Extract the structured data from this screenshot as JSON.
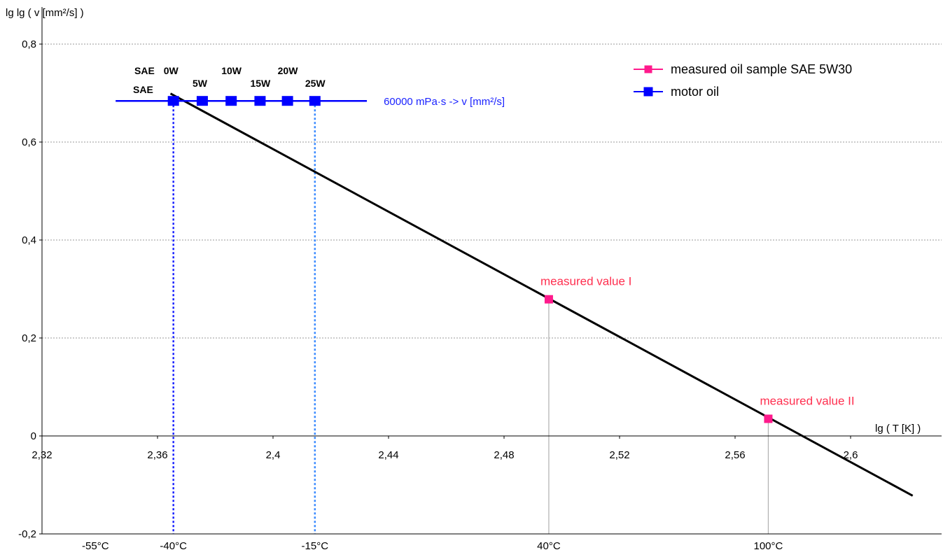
{
  "chart_data": {
    "type": "line",
    "ylabel": "lg lg ( v [mm²/s] )",
    "xlabel": "lg ( T [K] )",
    "xlim": [
      2.32,
      2.63
    ],
    "ylim": [
      -0.2,
      0.8
    ],
    "x_ticks": [
      {
        "value": 2.32,
        "label": "2,32"
      },
      {
        "value": 2.36,
        "label": "2,36"
      },
      {
        "value": 2.4,
        "label": "2,4"
      },
      {
        "value": 2.44,
        "label": "2,44"
      },
      {
        "value": 2.48,
        "label": "2,48"
      },
      {
        "value": 2.52,
        "label": "2,52"
      },
      {
        "value": 2.56,
        "label": "2,56"
      },
      {
        "value": 2.6,
        "label": "2,6"
      }
    ],
    "y_ticks": [
      {
        "value": 0.8,
        "label": "0,8"
      },
      {
        "value": 0.6,
        "label": "0,6"
      },
      {
        "value": 0.4,
        "label": "0,4"
      },
      {
        "value": 0.2,
        "label": "0,2"
      },
      {
        "value": 0.0,
        "label": "0"
      },
      {
        "value": -0.2,
        "label": "-0,2"
      }
    ],
    "temperature_ticks": [
      {
        "x": 2.3385,
        "label": "-55°C"
      },
      {
        "x": 2.3655,
        "label": "-40°C"
      },
      {
        "x": 2.4145,
        "label": "-15°C"
      },
      {
        "x": 2.4955,
        "label": "40°C"
      },
      {
        "x": 2.5715,
        "label": "100°C"
      }
    ],
    "grid": true,
    "legend_position": "top-right",
    "series": [
      {
        "name": "measured oil sample SAE 5W30",
        "color": "#ff1a8c",
        "marker": "square",
        "points": [
          {
            "x": 2.4955,
            "y": 0.279,
            "label": "measured value I"
          },
          {
            "x": 2.5715,
            "y": 0.035,
            "label": "measured value II"
          }
        ]
      },
      {
        "name": "motor oil",
        "color": "#0000ff",
        "marker": "square",
        "line_x": [
          2.3455,
          2.4325
        ],
        "y": 0.684,
        "line_label": "60000 mPa·s ->  v [mm²/s]",
        "points": [
          {
            "x": 2.3655,
            "label": "0W"
          },
          {
            "x": 2.3755,
            "label": "5W"
          },
          {
            "x": 2.3855,
            "label": "10W"
          },
          {
            "x": 2.3955,
            "label": "15W"
          },
          {
            "x": 2.405,
            "label": "20W"
          },
          {
            "x": 2.4145,
            "label": "25W"
          }
        ]
      }
    ],
    "fit_line": {
      "color": "#000000",
      "x": [
        2.3645,
        2.6215
      ],
      "y": [
        0.699,
        -0.122
      ]
    },
    "sae_labels": [
      "SAE",
      "SAE"
    ],
    "legend_colors": {
      "axis": "#000000",
      "grid": "#9a9a9a",
      "guide_gray": "#b0b0b0"
    }
  }
}
